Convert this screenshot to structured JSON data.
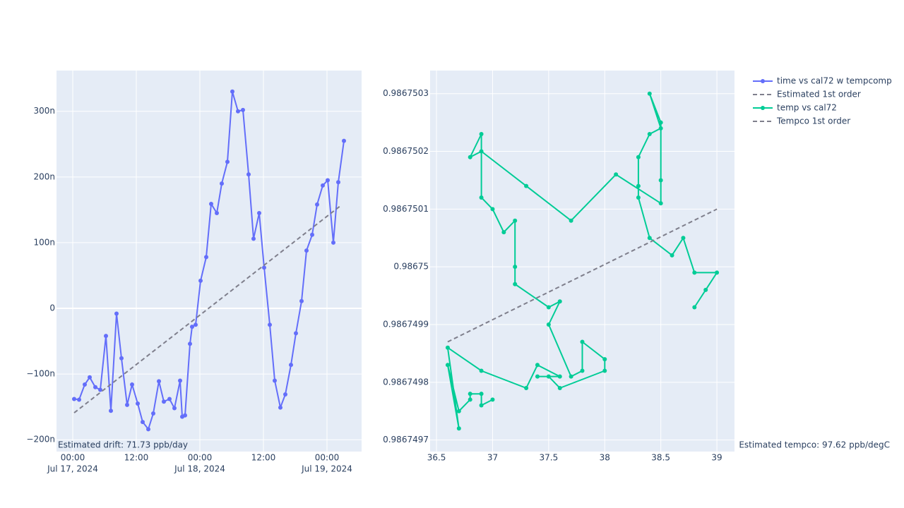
{
  "chart_data": [
    {
      "type": "line",
      "annotation": "Estimated drift:  71.73 ppb/day",
      "xlim": [
        "2024-07-16T20:56",
        "2024-07-19T06:32"
      ],
      "xticks": [
        {
          "value": "2024-07-17T00:00",
          "label": [
            "00:00",
            "Jul 17, 2024"
          ]
        },
        {
          "value": "2024-07-17T12:00",
          "label": [
            "12:00"
          ]
        },
        {
          "value": "2024-07-18T00:00",
          "label": [
            "00:00",
            "Jul 18, 2024"
          ]
        },
        {
          "value": "2024-07-18T12:00",
          "label": [
            "12:00"
          ]
        },
        {
          "value": "2024-07-19T00:00",
          "label": [
            "00:00",
            "Jul 19, 2024"
          ]
        }
      ],
      "ylim": [
        -218,
        362
      ],
      "yticks": [
        {
          "value": -200,
          "label": "−200n"
        },
        {
          "value": -100,
          "label": "−100n"
        },
        0,
        {
          "value": 100,
          "label": "100n"
        },
        {
          "value": 200,
          "label": "200n"
        },
        {
          "value": 300,
          "label": "300n"
        }
      ],
      "grid": true,
      "series": [
        {
          "name": "time vs cal72 w tempcomp",
          "color": "#636efa",
          "markers": true,
          "x": [
            "2024-07-17T00:16",
            "2024-07-17T01:12",
            "2024-07-17T02:16",
            "2024-07-17T03:12",
            "2024-07-17T04:16",
            "2024-07-17T05:12",
            "2024-07-17T06:16",
            "2024-07-17T07:12",
            "2024-07-17T08:16",
            "2024-07-17T09:12",
            "2024-07-17T10:16",
            "2024-07-17T11:12",
            "2024-07-17T12:16",
            "2024-07-17T13:12",
            "2024-07-17T14:16",
            "2024-07-17T15:12",
            "2024-07-17T16:16",
            "2024-07-17T17:12",
            "2024-07-17T18:16",
            "2024-07-17T19:12",
            "2024-07-17T20:16",
            "2024-07-17T20:40",
            "2024-07-17T21:12",
            "2024-07-17T22:08",
            "2024-07-17T22:32",
            "2024-07-17T23:12",
            "2024-07-18T00:08",
            "2024-07-18T01:12",
            "2024-07-18T02:08",
            "2024-07-18T03:12",
            "2024-07-18T04:08",
            "2024-07-18T05:12",
            "2024-07-18T06:08",
            "2024-07-18T07:12",
            "2024-07-18T08:08",
            "2024-07-18T09:12",
            "2024-07-18T10:08",
            "2024-07-18T11:12",
            "2024-07-18T12:08",
            "2024-07-18T13:12",
            "2024-07-18T14:08",
            "2024-07-18T15:12",
            "2024-07-18T16:08",
            "2024-07-18T17:12",
            "2024-07-18T18:08",
            "2024-07-18T19:12",
            "2024-07-18T20:08",
            "2024-07-18T21:12",
            "2024-07-18T22:08",
            "2024-07-18T23:12",
            "2024-07-19T00:08",
            "2024-07-19T01:12",
            "2024-07-19T02:08",
            "2024-07-19T03:12"
          ],
          "values": [
            -138,
            -139,
            -116,
            -105,
            -120,
            -124,
            -42,
            -156,
            -8,
            -76,
            -147,
            -116,
            -145,
            -173,
            -184,
            -160,
            -111,
            -142,
            -138,
            -152,
            -110,
            -165,
            -163,
            -54,
            -28,
            -25,
            42,
            78,
            159,
            145,
            190,
            223,
            330,
            300,
            302,
            204,
            106,
            145,
            62,
            -25,
            -110,
            -151,
            -131,
            -86,
            -38,
            11,
            88,
            112,
            158,
            187,
            195,
            100,
            192,
            255
          ]
        },
        {
          "name": "Estimated 1st order",
          "color": "#7f7f8c",
          "dash": true,
          "x": [
            "2024-07-17T00:16",
            "2024-07-19T02:32"
          ],
          "values": [
            -159,
            156
          ]
        }
      ]
    },
    {
      "type": "line",
      "annotation": "Estimated tempco:  97.62 ppb/degC",
      "xlim": [
        36.443,
        39.157
      ],
      "xticks": [
        36.5,
        37,
        37.5,
        38,
        38.5,
        39
      ],
      "ylim": [
        0.98674968,
        0.98675034
      ],
      "yticks": [
        0.9867497,
        0.9867498,
        0.9867499,
        0.98675,
        0.9867501,
        0.9867502,
        0.9867503
      ],
      "grid": true,
      "series": [
        {
          "name": "temp vs cal72",
          "color": "#00cc96",
          "markers": true,
          "x": [
            37.0,
            36.9,
            36.9,
            36.8,
            36.8,
            36.7,
            36.6,
            36.7,
            36.6,
            36.9,
            37.3,
            37.4,
            37.6,
            37.4,
            37.5,
            37.6,
            38.0,
            38.0,
            37.8,
            37.8,
            37.7,
            37.5,
            37.6,
            37.5,
            37.2,
            37.2,
            37.2,
            37.1,
            37.0,
            36.9,
            36.9,
            36.8,
            36.9,
            37.3,
            37.7,
            38.1,
            38.5,
            38.5,
            38.5,
            38.4,
            38.5,
            38.4,
            38.3,
            38.3,
            38.3,
            38.4,
            38.6,
            38.7,
            38.8,
            39.0,
            38.9,
            38.8
          ],
          "values": [
            0.98674977,
            0.98674976,
            0.98674978,
            0.98674978,
            0.98674977,
            0.98674975,
            0.98674983,
            0.98674972,
            0.98674986,
            0.98674982,
            0.98674979,
            0.98674983,
            0.98674981,
            0.98674981,
            0.98674981,
            0.98674979,
            0.98674982,
            0.98674984,
            0.98674987,
            0.98674982,
            0.98674981,
            0.9867499,
            0.98674994,
            0.98674993,
            0.98674997,
            0.98675,
            0.98675008,
            0.98675006,
            0.9867501,
            0.98675012,
            0.98675023,
            0.98675019,
            0.9867502,
            0.98675014,
            0.98675008,
            0.98675016,
            0.98675011,
            0.98675015,
            0.98675025,
            0.9867503,
            0.98675024,
            0.98675023,
            0.98675019,
            0.98675014,
            0.98675012,
            0.98675005,
            0.98675002,
            0.98675005,
            0.98674999,
            0.98674999,
            0.98674996,
            0.98674993
          ]
        },
        {
          "name": "Tempco 1st order",
          "color": "#7f7f8c",
          "dash": true,
          "x": [
            36.6,
            39.0
          ],
          "values": [
            0.98674987,
            0.9867501
          ]
        }
      ]
    }
  ]
}
